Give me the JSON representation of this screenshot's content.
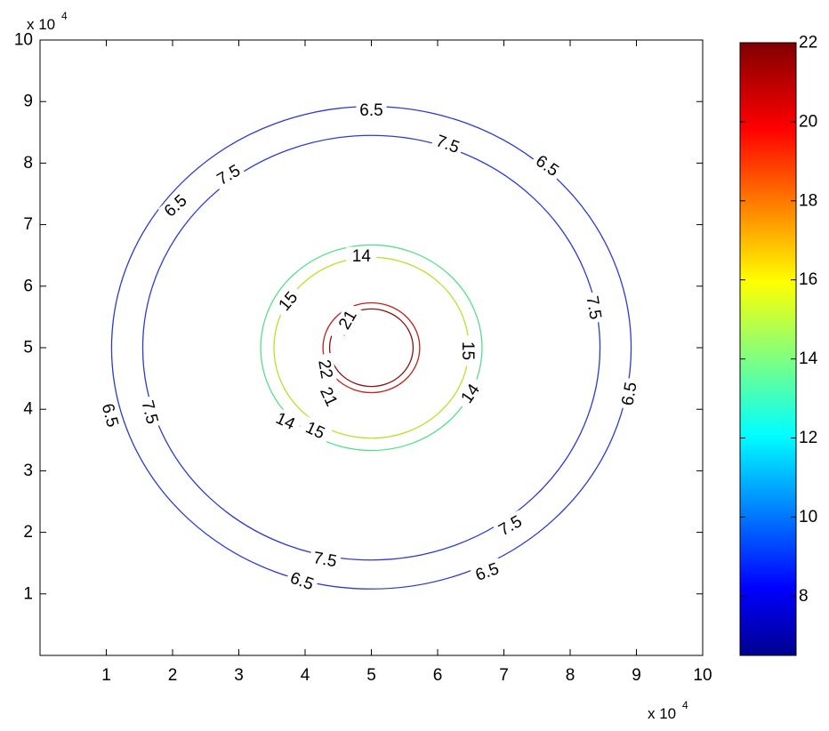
{
  "chart_data": {
    "type": "contour",
    "x_exponent_label": {
      "base": "x 10",
      "power": "4"
    },
    "y_exponent_label": {
      "base": "x 10",
      "power": "4"
    },
    "xlim": [
      0,
      10
    ],
    "ylim": [
      0,
      10
    ],
    "x_ticks": [
      "1",
      "2",
      "3",
      "4",
      "5",
      "6",
      "7",
      "8",
      "9",
      "10"
    ],
    "y_ticks": [
      "1",
      "2",
      "3",
      "4",
      "5",
      "6",
      "7",
      "8",
      "9",
      "10"
    ],
    "grid": false,
    "center": [
      5,
      5
    ],
    "contours": [
      {
        "level": "6.5",
        "radius": 3.92,
        "color": "#2b3ad6"
      },
      {
        "level": "7.5",
        "radius": 3.45,
        "color": "#2b3ad6"
      },
      {
        "level": "14",
        "radius": 1.67,
        "color": "#55e08a"
      },
      {
        "level": "15",
        "radius": 1.47,
        "color": "#b8e12a"
      },
      {
        "level": "21",
        "radius": 0.73,
        "color": "#c0201a"
      },
      {
        "level": "22",
        "radius": 0.63,
        "color": "#8a1010"
      }
    ],
    "contour_labels": [
      {
        "text": "6.5",
        "x": 5.0,
        "y": 8.85,
        "angle": 0
      },
      {
        "text": "6.5",
        "x": 2.05,
        "y": 7.3,
        "angle": -42
      },
      {
        "text": "6.5",
        "x": 7.65,
        "y": 7.95,
        "angle": 35
      },
      {
        "text": "6.5",
        "x": 8.9,
        "y": 4.25,
        "angle": -80
      },
      {
        "text": "6.5",
        "x": 1.05,
        "y": 3.9,
        "angle": 75
      },
      {
        "text": "6.5",
        "x": 3.95,
        "y": 1.2,
        "angle": 20
      },
      {
        "text": "6.5",
        "x": 6.75,
        "y": 1.35,
        "angle": -20
      },
      {
        "text": "7.5",
        "x": 2.85,
        "y": 7.8,
        "angle": -30
      },
      {
        "text": "7.5",
        "x": 6.15,
        "y": 8.3,
        "angle": 20
      },
      {
        "text": "7.5",
        "x": 8.35,
        "y": 5.65,
        "angle": 80
      },
      {
        "text": "7.5",
        "x": 1.65,
        "y": 3.95,
        "angle": 75
      },
      {
        "text": "7.5",
        "x": 4.3,
        "y": 1.55,
        "angle": 10
      },
      {
        "text": "7.5",
        "x": 7.1,
        "y": 2.1,
        "angle": -30
      },
      {
        "text": "14",
        "x": 4.85,
        "y": 6.48,
        "angle": 0
      },
      {
        "text": "14",
        "x": 3.7,
        "y": 3.8,
        "angle": 25
      },
      {
        "text": "14",
        "x": 6.5,
        "y": 4.25,
        "angle": -55
      },
      {
        "text": "15",
        "x": 3.75,
        "y": 5.75,
        "angle": -50
      },
      {
        "text": "15",
        "x": 6.45,
        "y": 4.95,
        "angle": 90
      },
      {
        "text": "15",
        "x": 4.15,
        "y": 3.65,
        "angle": 25
      },
      {
        "text": "22",
        "x": 4.6,
        "y": 5.35,
        "angle": -60
      },
      {
        "text": "21",
        "x": 4.65,
        "y": 5.45,
        "angle": -60
      },
      {
        "text": "22",
        "x": 4.3,
        "y": 4.65,
        "angle": 80
      },
      {
        "text": "21",
        "x": 4.35,
        "y": 4.2,
        "angle": 65
      }
    ],
    "colorbar": {
      "min": 6.5,
      "max": 22,
      "ticks": [
        "8",
        "10",
        "12",
        "14",
        "16",
        "18",
        "20",
        "22"
      ],
      "tick_values": [
        8,
        10,
        12,
        14,
        16,
        18,
        20,
        22
      ],
      "colormap": "jet"
    }
  }
}
